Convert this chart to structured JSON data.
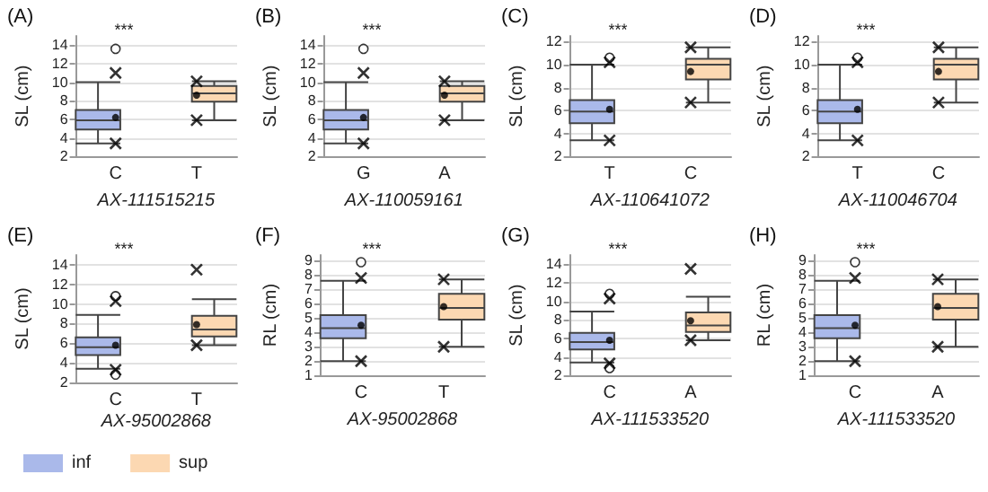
{
  "chart_data": [
    {
      "type": "box",
      "title": "(A)",
      "xlabel": "AX-111515215",
      "ylabel": "SL (cm)",
      "categories": [
        "C",
        "T"
      ],
      "ylim": [
        2,
        15
      ],
      "yticks": [
        2,
        4,
        6,
        8,
        10,
        12,
        14
      ],
      "grid": "y",
      "legend": false,
      "annotations": [
        "***"
      ],
      "series": [
        {
          "color": "#aab9ea",
          "boxes": [
            {
              "low": 3.4,
              "q1": 4.9,
              "median": 5.9,
              "q3": 7.0,
              "high": 10.0,
              "outliers": [
                13.6
              ]
            },
            null
          ]
        },
        {
          "color": "#fcd8b2",
          "boxes": [
            null,
            {
              "low": 5.9,
              "q1": 7.9,
              "median": 8.8,
              "q3": 9.6,
              "high": 10.1
            }
          ]
        },
        {
          "type": "scatter",
          "marker": "circle",
          "color": "#000000",
          "x": [
            "C",
            "T"
          ],
          "values": [
            6.2,
            8.6
          ]
        },
        {
          "type": "scatter",
          "marker": "cross",
          "color": "#000000",
          "x": [
            "C",
            "C",
            "T",
            "T"
          ],
          "values": [
            11.0,
            3.4,
            10.1,
            5.9
          ]
        }
      ]
    },
    {
      "type": "box",
      "title": "(B)",
      "xlabel": "AX-110059161",
      "ylabel": "SL (cm)",
      "categories": [
        "G",
        "A"
      ],
      "ylim": [
        2,
        15
      ],
      "yticks": [
        2,
        4,
        6,
        8,
        10,
        12,
        14
      ],
      "grid": "y",
      "legend": false,
      "annotations": [
        "***"
      ],
      "series": [
        {
          "color": "#aab9ea",
          "boxes": [
            {
              "low": 3.4,
              "q1": 4.9,
              "median": 5.9,
              "q3": 7.0,
              "high": 10.0,
              "outliers": [
                13.6
              ]
            },
            null
          ]
        },
        {
          "color": "#fcd8b2",
          "boxes": [
            null,
            {
              "low": 5.9,
              "q1": 7.9,
              "median": 8.8,
              "q3": 9.6,
              "high": 10.1
            }
          ]
        },
        {
          "type": "scatter",
          "marker": "circle",
          "color": "#000000",
          "x": [
            "G",
            "A"
          ],
          "values": [
            6.2,
            8.6
          ]
        },
        {
          "type": "scatter",
          "marker": "cross",
          "color": "#000000",
          "x": [
            "G",
            "G",
            "A",
            "A"
          ],
          "values": [
            11.0,
            3.4,
            10.1,
            5.9
          ]
        }
      ]
    },
    {
      "type": "box",
      "title": "(C)",
      "xlabel": "AX-110641072",
      "ylabel": "SL (cm)",
      "categories": [
        "T",
        "C"
      ],
      "ylim": [
        2,
        12.5
      ],
      "yticks": [
        2,
        4,
        6,
        8,
        10,
        12
      ],
      "grid": "y",
      "legend": false,
      "annotations": [
        "***"
      ],
      "series": [
        {
          "color": "#aab9ea",
          "boxes": [
            {
              "low": 3.4,
              "q1": 4.9,
              "median": 5.9,
              "q3": 6.9,
              "high": 10.0,
              "outliers": [
                10.6
              ]
            },
            null
          ]
        },
        {
          "color": "#fcd8b2",
          "boxes": [
            null,
            {
              "low": 6.7,
              "q1": 8.7,
              "median": 10.0,
              "q3": 10.5,
              "high": 11.5
            }
          ]
        },
        {
          "type": "scatter",
          "marker": "circle",
          "color": "#000000",
          "x": [
            "T",
            "C"
          ],
          "values": [
            6.1,
            9.4
          ]
        },
        {
          "type": "scatter",
          "marker": "cross",
          "color": "#000000",
          "x": [
            "T",
            "T",
            "C",
            "C"
          ],
          "values": [
            10.2,
            3.4,
            11.5,
            6.7
          ]
        }
      ]
    },
    {
      "type": "box",
      "title": "(D)",
      "xlabel": "AX-110046704",
      "ylabel": "SL (cm)",
      "categories": [
        "T",
        "C"
      ],
      "ylim": [
        2,
        12.5
      ],
      "yticks": [
        2,
        4,
        6,
        8,
        10,
        12
      ],
      "grid": "y",
      "legend": false,
      "annotations": [
        "***"
      ],
      "series": [
        {
          "color": "#aab9ea",
          "boxes": [
            {
              "low": 3.4,
              "q1": 4.9,
              "median": 5.9,
              "q3": 6.9,
              "high": 10.0,
              "outliers": [
                10.6
              ]
            },
            null
          ]
        },
        {
          "color": "#fcd8b2",
          "boxes": [
            null,
            {
              "low": 6.7,
              "q1": 8.7,
              "median": 10.0,
              "q3": 10.5,
              "high": 11.5
            }
          ]
        },
        {
          "type": "scatter",
          "marker": "circle",
          "color": "#000000",
          "x": [
            "T",
            "C"
          ],
          "values": [
            6.1,
            9.4
          ]
        },
        {
          "type": "scatter",
          "marker": "cross",
          "color": "#000000",
          "x": [
            "T",
            "T",
            "C",
            "C"
          ],
          "values": [
            10.2,
            3.4,
            11.5,
            6.7
          ]
        }
      ]
    },
    {
      "type": "box",
      "title": "(E)",
      "xlabel": "AX-95002868",
      "ylabel": "SL (cm)",
      "categories": [
        "C",
        "T"
      ],
      "ylim": [
        2,
        15
      ],
      "yticks": [
        2,
        4,
        6,
        8,
        10,
        12,
        14
      ],
      "grid": "y",
      "legend": "bottom",
      "annotations": [
        "***"
      ],
      "series": [
        {
          "name": "inf",
          "color": "#aab9ea",
          "boxes": [
            {
              "low": 3.4,
              "q1": 4.8,
              "median": 5.6,
              "q3": 6.6,
              "high": 8.9,
              "outliers": [
                10.8,
                2.8
              ]
            },
            null
          ]
        },
        {
          "name": "sup",
          "color": "#fcd8b2",
          "boxes": [
            null,
            {
              "low": 5.8,
              "q1": 6.7,
              "median": 7.4,
              "q3": 8.8,
              "high": 10.5
            }
          ]
        },
        {
          "type": "scatter",
          "marker": "circle",
          "color": "#000000",
          "x": [
            "C",
            "T"
          ],
          "values": [
            5.8,
            7.9
          ]
        },
        {
          "type": "scatter",
          "marker": "cross",
          "color": "#000000",
          "x": [
            "C",
            "C",
            "T",
            "T"
          ],
          "values": [
            10.3,
            3.3,
            13.5,
            5.8
          ]
        }
      ]
    },
    {
      "type": "box",
      "title": "(F)",
      "xlabel": "AX-95002868",
      "ylabel": "RL (cm)",
      "categories": [
        "C",
        "T"
      ],
      "ylim": [
        1,
        9.4
      ],
      "yticks": [
        1,
        2,
        3,
        4,
        5,
        6,
        7,
        8,
        9
      ],
      "grid": "y",
      "legend": false,
      "annotations": [
        "***"
      ],
      "series": [
        {
          "color": "#aab9ea",
          "boxes": [
            {
              "low": 2.0,
              "q1": 3.6,
              "median": 4.3,
              "q3": 5.2,
              "high": 7.6,
              "outliers": [
                8.9
              ]
            },
            null
          ]
        },
        {
          "color": "#fcd8b2",
          "boxes": [
            null,
            {
              "low": 3.0,
              "q1": 4.9,
              "median": 5.7,
              "q3": 6.7,
              "high": 7.7
            }
          ]
        },
        {
          "type": "scatter",
          "marker": "circle",
          "color": "#000000",
          "x": [
            "C",
            "T"
          ],
          "values": [
            4.5,
            5.8
          ]
        },
        {
          "type": "scatter",
          "marker": "cross",
          "color": "#000000",
          "x": [
            "C",
            "C",
            "T",
            "T"
          ],
          "values": [
            7.8,
            2.0,
            7.7,
            3.0
          ]
        }
      ]
    },
    {
      "type": "box",
      "title": "(G)",
      "xlabel": "AX-111533520",
      "ylabel": "SL (cm)",
      "categories": [
        "C",
        "A"
      ],
      "ylim": [
        2,
        15
      ],
      "yticks": [
        2,
        4,
        6,
        8,
        10,
        12,
        14
      ],
      "grid": "y",
      "legend": false,
      "annotations": [
        "***"
      ],
      "series": [
        {
          "color": "#aab9ea",
          "boxes": [
            {
              "low": 3.4,
              "q1": 4.8,
              "median": 5.6,
              "q3": 6.6,
              "high": 8.9,
              "outliers": [
                10.8,
                2.8
              ]
            },
            null
          ]
        },
        {
          "color": "#fcd8b2",
          "boxes": [
            null,
            {
              "low": 5.8,
              "q1": 6.7,
              "median": 7.4,
              "q3": 8.8,
              "high": 10.5
            }
          ]
        },
        {
          "type": "scatter",
          "marker": "circle",
          "color": "#000000",
          "x": [
            "C",
            "A"
          ],
          "values": [
            5.8,
            7.9
          ]
        },
        {
          "type": "scatter",
          "marker": "cross",
          "color": "#000000",
          "x": [
            "C",
            "C",
            "A",
            "A"
          ],
          "values": [
            10.3,
            3.3,
            13.5,
            5.8
          ]
        }
      ]
    },
    {
      "type": "box",
      "title": "(H)",
      "xlabel": "AX-111533520",
      "ylabel": "RL (cm)",
      "categories": [
        "C",
        "A"
      ],
      "ylim": [
        1,
        9.4
      ],
      "yticks": [
        1,
        2,
        3,
        4,
        5,
        6,
        7,
        8,
        9
      ],
      "grid": "y",
      "legend": false,
      "annotations": [
        "***"
      ],
      "series": [
        {
          "color": "#aab9ea",
          "boxes": [
            {
              "low": 2.0,
              "q1": 3.6,
              "median": 4.3,
              "q3": 5.2,
              "high": 7.6,
              "outliers": [
                8.9
              ]
            },
            null
          ]
        },
        {
          "color": "#fcd8b2",
          "boxes": [
            null,
            {
              "low": 3.0,
              "q1": 4.9,
              "median": 5.7,
              "q3": 6.7,
              "high": 7.7
            }
          ]
        },
        {
          "type": "scatter",
          "marker": "circle",
          "color": "#000000",
          "x": [
            "C",
            "A"
          ],
          "values": [
            4.5,
            5.8
          ]
        },
        {
          "type": "scatter",
          "marker": "cross",
          "color": "#000000",
          "x": [
            "C",
            "C",
            "A",
            "A"
          ],
          "values": [
            7.8,
            2.0,
            7.7,
            3.0
          ]
        }
      ]
    }
  ]
}
